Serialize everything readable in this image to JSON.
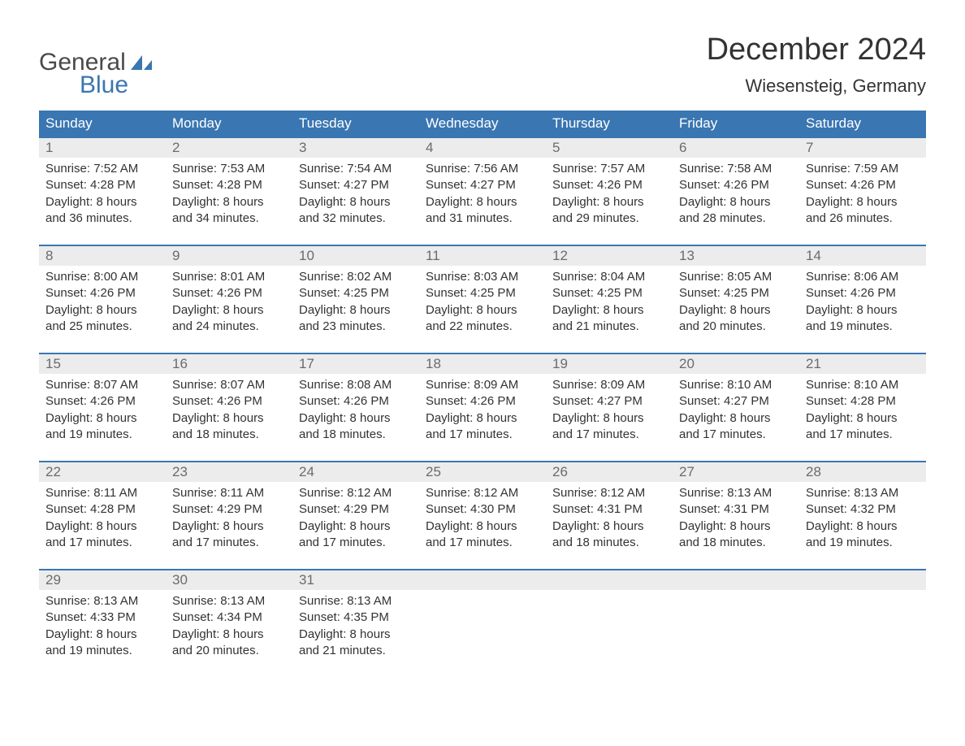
{
  "brand": {
    "part1": "General",
    "part2": "Blue",
    "color_general": "#4a4a4a",
    "color_blue": "#3a76b1"
  },
  "title": "December 2024",
  "location": "Wiesensteig, Germany",
  "header_bg": "#3a76b1",
  "header_fg": "#ffffff",
  "daynum_bg": "#ececec",
  "daynum_fg": "#6b6b6b",
  "text_color": "#333333",
  "border_color": "#3a76b1",
  "background_color": "#ffffff",
  "font_family": "Arial, Helvetica, sans-serif",
  "title_fontsize": 38,
  "location_fontsize": 22,
  "header_fontsize": 17,
  "body_fontsize": 15,
  "columns": [
    "Sunday",
    "Monday",
    "Tuesday",
    "Wednesday",
    "Thursday",
    "Friday",
    "Saturday"
  ],
  "weeks": [
    {
      "days": [
        {
          "n": "1",
          "sunrise": "Sunrise: 7:52 AM",
          "sunset": "Sunset: 4:28 PM",
          "d1": "Daylight: 8 hours",
          "d2": "and 36 minutes."
        },
        {
          "n": "2",
          "sunrise": "Sunrise: 7:53 AM",
          "sunset": "Sunset: 4:28 PM",
          "d1": "Daylight: 8 hours",
          "d2": "and 34 minutes."
        },
        {
          "n": "3",
          "sunrise": "Sunrise: 7:54 AM",
          "sunset": "Sunset: 4:27 PM",
          "d1": "Daylight: 8 hours",
          "d2": "and 32 minutes."
        },
        {
          "n": "4",
          "sunrise": "Sunrise: 7:56 AM",
          "sunset": "Sunset: 4:27 PM",
          "d1": "Daylight: 8 hours",
          "d2": "and 31 minutes."
        },
        {
          "n": "5",
          "sunrise": "Sunrise: 7:57 AM",
          "sunset": "Sunset: 4:26 PM",
          "d1": "Daylight: 8 hours",
          "d2": "and 29 minutes."
        },
        {
          "n": "6",
          "sunrise": "Sunrise: 7:58 AM",
          "sunset": "Sunset: 4:26 PM",
          "d1": "Daylight: 8 hours",
          "d2": "and 28 minutes."
        },
        {
          "n": "7",
          "sunrise": "Sunrise: 7:59 AM",
          "sunset": "Sunset: 4:26 PM",
          "d1": "Daylight: 8 hours",
          "d2": "and 26 minutes."
        }
      ]
    },
    {
      "days": [
        {
          "n": "8",
          "sunrise": "Sunrise: 8:00 AM",
          "sunset": "Sunset: 4:26 PM",
          "d1": "Daylight: 8 hours",
          "d2": "and 25 minutes."
        },
        {
          "n": "9",
          "sunrise": "Sunrise: 8:01 AM",
          "sunset": "Sunset: 4:26 PM",
          "d1": "Daylight: 8 hours",
          "d2": "and 24 minutes."
        },
        {
          "n": "10",
          "sunrise": "Sunrise: 8:02 AM",
          "sunset": "Sunset: 4:25 PM",
          "d1": "Daylight: 8 hours",
          "d2": "and 23 minutes."
        },
        {
          "n": "11",
          "sunrise": "Sunrise: 8:03 AM",
          "sunset": "Sunset: 4:25 PM",
          "d1": "Daylight: 8 hours",
          "d2": "and 22 minutes."
        },
        {
          "n": "12",
          "sunrise": "Sunrise: 8:04 AM",
          "sunset": "Sunset: 4:25 PM",
          "d1": "Daylight: 8 hours",
          "d2": "and 21 minutes."
        },
        {
          "n": "13",
          "sunrise": "Sunrise: 8:05 AM",
          "sunset": "Sunset: 4:25 PM",
          "d1": "Daylight: 8 hours",
          "d2": "and 20 minutes."
        },
        {
          "n": "14",
          "sunrise": "Sunrise: 8:06 AM",
          "sunset": "Sunset: 4:26 PM",
          "d1": "Daylight: 8 hours",
          "d2": "and 19 minutes."
        }
      ]
    },
    {
      "days": [
        {
          "n": "15",
          "sunrise": "Sunrise: 8:07 AM",
          "sunset": "Sunset: 4:26 PM",
          "d1": "Daylight: 8 hours",
          "d2": "and 19 minutes."
        },
        {
          "n": "16",
          "sunrise": "Sunrise: 8:07 AM",
          "sunset": "Sunset: 4:26 PM",
          "d1": "Daylight: 8 hours",
          "d2": "and 18 minutes."
        },
        {
          "n": "17",
          "sunrise": "Sunrise: 8:08 AM",
          "sunset": "Sunset: 4:26 PM",
          "d1": "Daylight: 8 hours",
          "d2": "and 18 minutes."
        },
        {
          "n": "18",
          "sunrise": "Sunrise: 8:09 AM",
          "sunset": "Sunset: 4:26 PM",
          "d1": "Daylight: 8 hours",
          "d2": "and 17 minutes."
        },
        {
          "n": "19",
          "sunrise": "Sunrise: 8:09 AM",
          "sunset": "Sunset: 4:27 PM",
          "d1": "Daylight: 8 hours",
          "d2": "and 17 minutes."
        },
        {
          "n": "20",
          "sunrise": "Sunrise: 8:10 AM",
          "sunset": "Sunset: 4:27 PM",
          "d1": "Daylight: 8 hours",
          "d2": "and 17 minutes."
        },
        {
          "n": "21",
          "sunrise": "Sunrise: 8:10 AM",
          "sunset": "Sunset: 4:28 PM",
          "d1": "Daylight: 8 hours",
          "d2": "and 17 minutes."
        }
      ]
    },
    {
      "days": [
        {
          "n": "22",
          "sunrise": "Sunrise: 8:11 AM",
          "sunset": "Sunset: 4:28 PM",
          "d1": "Daylight: 8 hours",
          "d2": "and 17 minutes."
        },
        {
          "n": "23",
          "sunrise": "Sunrise: 8:11 AM",
          "sunset": "Sunset: 4:29 PM",
          "d1": "Daylight: 8 hours",
          "d2": "and 17 minutes."
        },
        {
          "n": "24",
          "sunrise": "Sunrise: 8:12 AM",
          "sunset": "Sunset: 4:29 PM",
          "d1": "Daylight: 8 hours",
          "d2": "and 17 minutes."
        },
        {
          "n": "25",
          "sunrise": "Sunrise: 8:12 AM",
          "sunset": "Sunset: 4:30 PM",
          "d1": "Daylight: 8 hours",
          "d2": "and 17 minutes."
        },
        {
          "n": "26",
          "sunrise": "Sunrise: 8:12 AM",
          "sunset": "Sunset: 4:31 PM",
          "d1": "Daylight: 8 hours",
          "d2": "and 18 minutes."
        },
        {
          "n": "27",
          "sunrise": "Sunrise: 8:13 AM",
          "sunset": "Sunset: 4:31 PM",
          "d1": "Daylight: 8 hours",
          "d2": "and 18 minutes."
        },
        {
          "n": "28",
          "sunrise": "Sunrise: 8:13 AM",
          "sunset": "Sunset: 4:32 PM",
          "d1": "Daylight: 8 hours",
          "d2": "and 19 minutes."
        }
      ]
    },
    {
      "days": [
        {
          "n": "29",
          "sunrise": "Sunrise: 8:13 AM",
          "sunset": "Sunset: 4:33 PM",
          "d1": "Daylight: 8 hours",
          "d2": "and 19 minutes."
        },
        {
          "n": "30",
          "sunrise": "Sunrise: 8:13 AM",
          "sunset": "Sunset: 4:34 PM",
          "d1": "Daylight: 8 hours",
          "d2": "and 20 minutes."
        },
        {
          "n": "31",
          "sunrise": "Sunrise: 8:13 AM",
          "sunset": "Sunset: 4:35 PM",
          "d1": "Daylight: 8 hours",
          "d2": "and 21 minutes."
        },
        {
          "n": "",
          "sunrise": "",
          "sunset": "",
          "d1": "",
          "d2": ""
        },
        {
          "n": "",
          "sunrise": "",
          "sunset": "",
          "d1": "",
          "d2": ""
        },
        {
          "n": "",
          "sunrise": "",
          "sunset": "",
          "d1": "",
          "d2": ""
        },
        {
          "n": "",
          "sunrise": "",
          "sunset": "",
          "d1": "",
          "d2": ""
        }
      ]
    }
  ]
}
